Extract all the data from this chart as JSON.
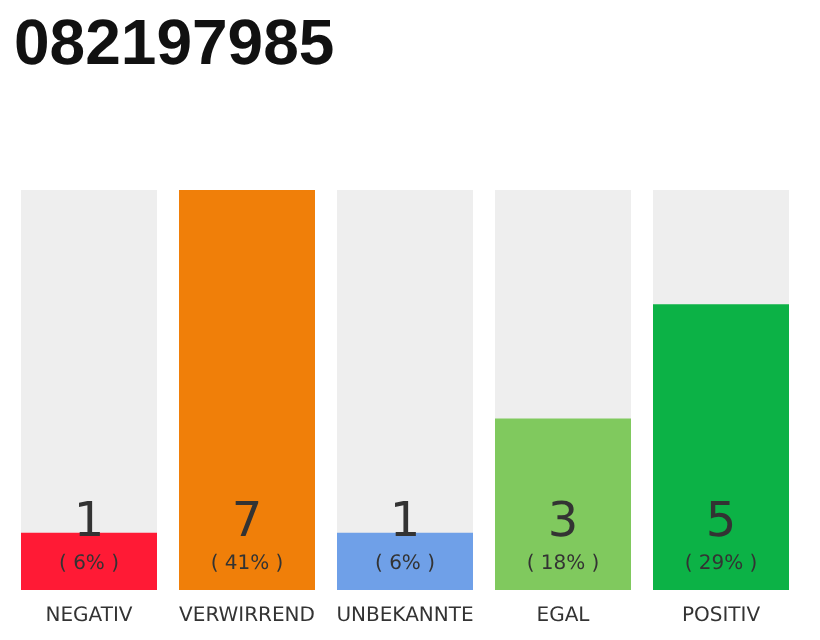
{
  "chart_data": {
    "type": "bar",
    "title": "082197985",
    "categories": [
      "NEGATIV",
      "VERWIRREND",
      "UNBEKANNTE",
      "EGAL",
      "POSITIV"
    ],
    "values": [
      1,
      7,
      1,
      3,
      5
    ],
    "colors": [
      "#ff1a35",
      "#f07f09",
      "#6fa0e8",
      "#80c95e",
      "#0cb246"
    ],
    "data_labels": true,
    "annotations": [
      "( 6% )",
      "( 41% )",
      "( 6% )",
      "( 18% )",
      "( 29% )"
    ]
  }
}
